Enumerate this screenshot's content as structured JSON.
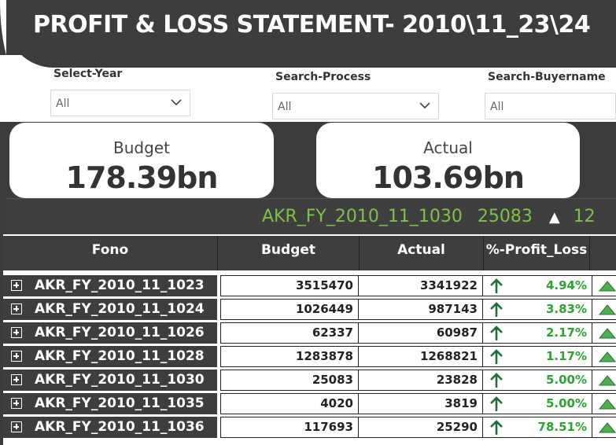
{
  "title": "PROFIT & LOSS STATEMENT- 2010\\11_23\\24",
  "filters": [
    {
      "label": "Select-Year",
      "value": "All"
    },
    {
      "label": "Search-Process",
      "value": "All"
    },
    {
      "label": "Search-Buyername",
      "value": "All"
    }
  ],
  "kpis": {
    "budget": {
      "label": "Budget",
      "value": "178.39bn"
    },
    "actual": {
      "label": "Actual",
      "value": "103.69bn"
    }
  },
  "ticker": {
    "name": "AKR_FY_2010_11_1030",
    "value": "25083",
    "arrow": "▲",
    "next": "12"
  },
  "table": {
    "headers": {
      "fono": "Fono",
      "budget": "Budget",
      "actual": "Actual",
      "pct": "%-Profit_Loss"
    },
    "rows": [
      {
        "fono": "AKR_FY_2010_11_1023",
        "budget": "3515470",
        "actual": "3341922",
        "pct": "4.94%"
      },
      {
        "fono": "AKR_FY_2010_11_1024",
        "budget": "1026449",
        "actual": "987143",
        "pct": "3.83%"
      },
      {
        "fono": "AKR_FY_2010_11_1026",
        "budget": "62337",
        "actual": "60987",
        "pct": "2.17%"
      },
      {
        "fono": "AKR_FY_2010_11_1028",
        "budget": "1283878",
        "actual": "1268821",
        "pct": "1.17%"
      },
      {
        "fono": "AKR_FY_2010_11_1030",
        "budget": "25083",
        "actual": "23828",
        "pct": "5.00%"
      },
      {
        "fono": "AKR_FY_2010_11_1035",
        "budget": "4020",
        "actual": "3819",
        "pct": "5.00%"
      },
      {
        "fono": "AKR_FY_2010_11_1036",
        "budget": "117693",
        "actual": "25290",
        "pct": "78.51%"
      }
    ]
  },
  "colors": {
    "dark": "#3e3e3e",
    "positive": "#2aa530",
    "ticker": "#7cc245"
  }
}
